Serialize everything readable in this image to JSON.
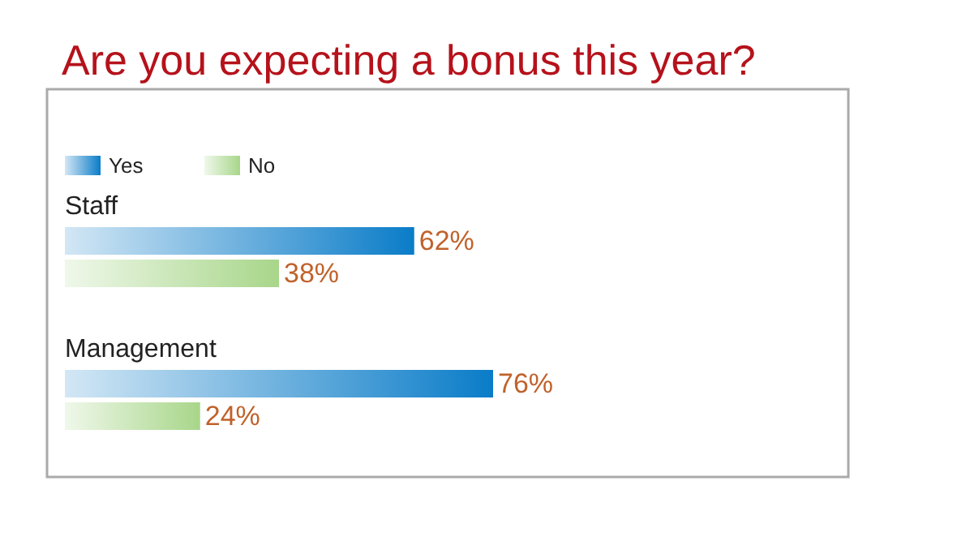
{
  "chart_data": {
    "type": "bar",
    "orientation": "horizontal",
    "title": "Are you expecting a bonus this year?",
    "categories": [
      "Staff",
      "Management"
    ],
    "series": [
      {
        "name": "Yes",
        "color": "#0a7cc8",
        "values": [
          62,
          76
        ],
        "value_labels": [
          "62%",
          "76%"
        ]
      },
      {
        "name": "No",
        "color": "#a8d68a",
        "values": [
          38,
          24
        ],
        "value_labels": [
          "38%",
          "24%"
        ]
      }
    ],
    "legend": "top left"
  }
}
